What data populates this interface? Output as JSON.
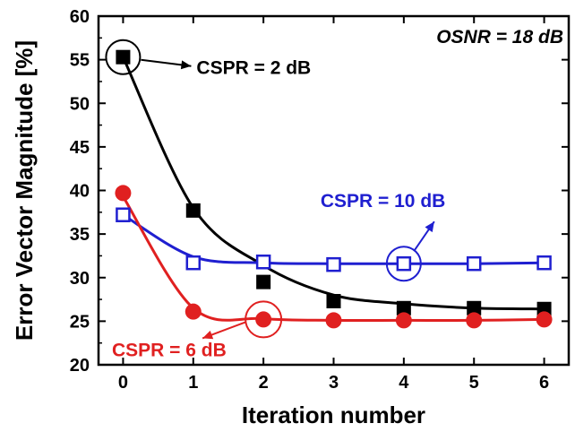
{
  "chart_data": {
    "type": "line",
    "xlabel": "Iteration number",
    "ylabel": "Error Vector Magnitude [%]",
    "xlim": [
      -0.35,
      6.35
    ],
    "ylim": [
      20,
      60
    ],
    "xticks": [
      0,
      1,
      2,
      3,
      4,
      5,
      6
    ],
    "yticks": [
      20,
      25,
      30,
      35,
      40,
      45,
      50,
      55,
      60
    ],
    "grid": false,
    "annotation_text": "OSNR = 18 dB",
    "series": [
      {
        "name": "CSPR = 2 dB",
        "color": "#000000",
        "marker": "filled-square",
        "x": [
          0,
          1,
          2,
          3,
          4,
          5,
          6
        ],
        "values": [
          55.3,
          37.7,
          29.5,
          27.3,
          26.5,
          26.5,
          26.4
        ],
        "fit": [
          55.3,
          38.0,
          31.4,
          28.0,
          27.0,
          26.5,
          26.4
        ],
        "label": "CSPR = 2 dB",
        "highlight_index": 0
      },
      {
        "name": "CSPR = 10 dB",
        "color": "#1f1fd0",
        "marker": "open-square",
        "x": [
          0,
          1,
          2,
          3,
          4,
          5,
          6
        ],
        "values": [
          37.2,
          31.7,
          31.8,
          31.5,
          31.6,
          31.6,
          31.7
        ],
        "fit": [
          37.2,
          32.4,
          31.7,
          31.6,
          31.6,
          31.6,
          31.7
        ],
        "label": "CSPR = 10 dB",
        "highlight_index": 4
      },
      {
        "name": "CSPR = 6 dB",
        "color": "#e02020",
        "marker": "filled-circle",
        "x": [
          0,
          1,
          2,
          3,
          4,
          5,
          6
        ],
        "values": [
          39.7,
          26.1,
          25.2,
          25.1,
          25.1,
          25.1,
          25.2
        ],
        "fit": [
          39.3,
          26.5,
          25.3,
          25.1,
          25.1,
          25.1,
          25.2
        ],
        "label": "CSPR = 6 dB",
        "highlight_index": 2
      }
    ]
  }
}
